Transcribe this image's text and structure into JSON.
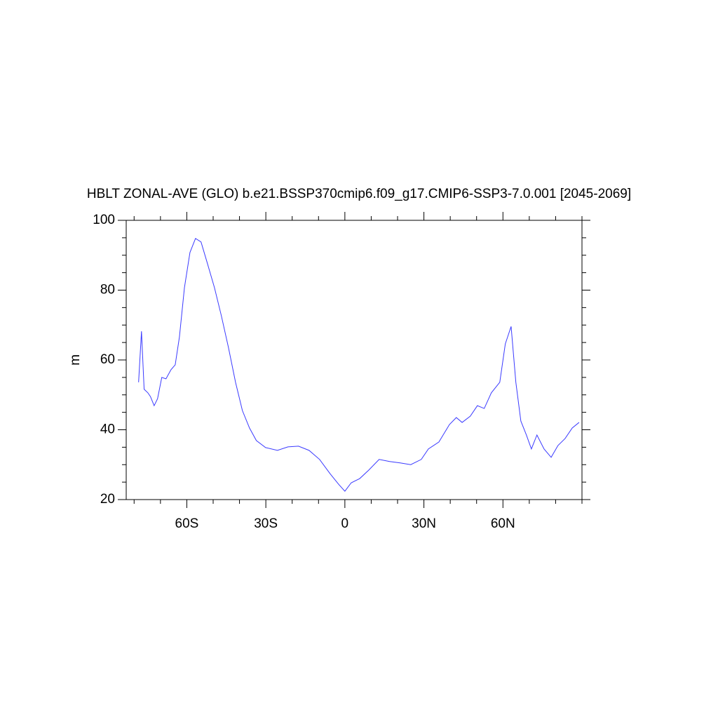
{
  "chart_data": {
    "type": "line",
    "title": "HBLT ZONAL-AVE (GLO) b.e21.BSSP370cmip6.f09_g17.CMIP6-SSP3-7.0.001 [2045-2069]",
    "y_label": "m",
    "x": [
      -78.3,
      -77.2,
      -76.2,
      -74.8,
      -73.8,
      -72.4,
      -71.1,
      -69.5,
      -67.9,
      -66,
      -64.4,
      -62.8,
      -60.9,
      -58.8,
      -56.7,
      -54.6,
      -52.2,
      -49.5,
      -46.9,
      -44.2,
      -41.5,
      -38.9,
      -36.2,
      -33.6,
      -30.1,
      -25.6,
      -21.6,
      -17.6,
      -13.6,
      -9.6,
      -5.6,
      -2.4,
      0,
      2.4,
      5.6,
      9,
      13,
      17,
      21,
      25,
      29,
      31.7,
      35.7,
      39.7,
      42.3,
      44.5,
      47.6,
      50.3,
      52.9,
      55.6,
      58.8,
      60.9,
      63.1,
      64.9,
      66.8,
      68.9,
      70.8,
      72.9,
      75.6,
      78.3,
      80.9,
      83.6,
      86.3,
      88.9
    ],
    "series": [
      {
        "color": "#3a3aff",
        "values": [
          53.6,
          68.2,
          51.6,
          50.6,
          49.5,
          46.9,
          48.9,
          55,
          54.6,
          57.2,
          58.6,
          66.6,
          80.7,
          90.8,
          94.8,
          93.8,
          87.7,
          80.7,
          72.7,
          63.6,
          53.6,
          45.5,
          40.5,
          36.9,
          34.9,
          34.1,
          35.1,
          35.3,
          34.1,
          31.5,
          27.4,
          24.4,
          22.4,
          24.8,
          26,
          28.4,
          31.5,
          30.9,
          30.5,
          30,
          31.5,
          34.5,
          36.5,
          41.5,
          43.5,
          42.1,
          43.9,
          46.9,
          46.1,
          50.6,
          53.6,
          64.6,
          69.6,
          53.6,
          42.5,
          38.5,
          34.5,
          38.5,
          34.5,
          32.1,
          35.5,
          37.5,
          40.5,
          42.1
        ]
      }
    ],
    "xlim": [
      -83,
      90
    ],
    "xticks": [
      {
        "value": -60,
        "label": "60S"
      },
      {
        "value": -30,
        "label": "30S"
      },
      0,
      {
        "value": 30,
        "label": "30N"
      },
      {
        "value": 60,
        "label": "60N"
      }
    ],
    "xminorticks": [
      -80,
      -70,
      -50,
      -40,
      -20,
      -10,
      10,
      20,
      40,
      50,
      70,
      80,
      90
    ],
    "ylim": [
      20,
      100
    ],
    "yticks": [
      20,
      40,
      60,
      80,
      100
    ],
    "yminorticks": [
      25,
      30,
      35,
      45,
      50,
      55,
      65,
      70,
      75,
      85,
      90,
      95
    ]
  }
}
